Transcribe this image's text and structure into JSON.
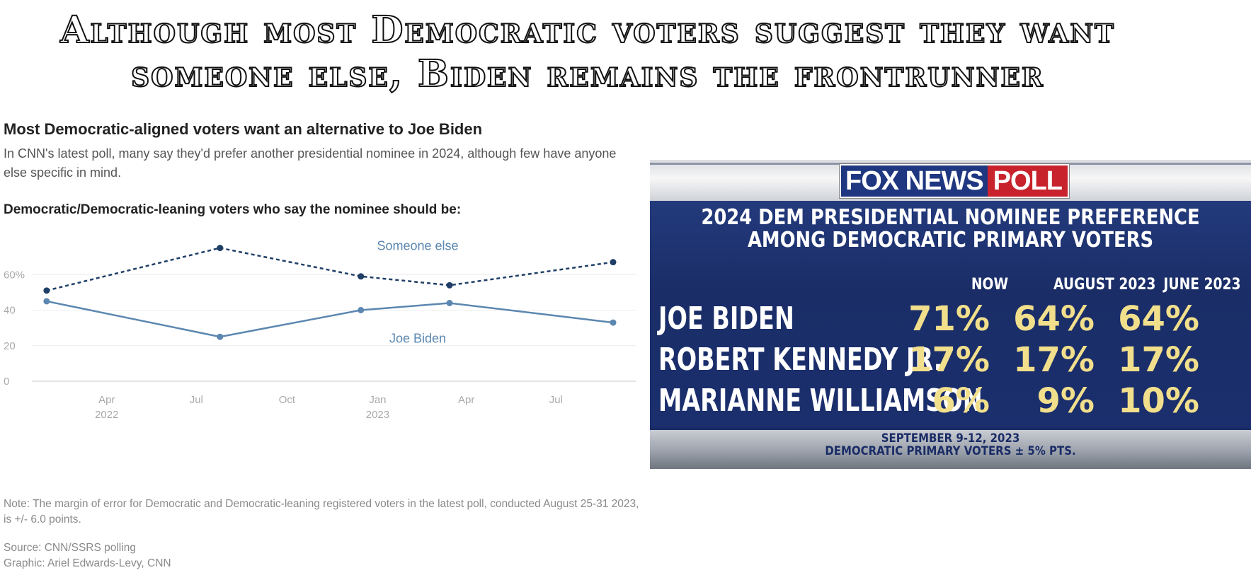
{
  "headline": {
    "line1": "Although most Democratic voters suggest they want",
    "line2": "someone else, Biden remains the frontrunner"
  },
  "cnn": {
    "title": "Most Democratic-aligned voters want an alternative to Joe Biden",
    "subtitle": "In CNN's latest poll, many say they'd prefer another presidential nominee in 2024, although few have anyone else specific in mind.",
    "qualifier": "Democratic/Democratic-leaning voters who say the nominee should be:",
    "note": "Note: The margin of error for Democratic and Democratic-leaning registered voters in the latest poll, conducted August 25-31 2023, is +/- 6.0 points.",
    "source": "Source: CNN/SSRS polling",
    "graphic": "Graphic: Ariel Edwards-Levy, CNN"
  },
  "chart_data": {
    "type": "line",
    "title": "Most Democratic-aligned voters want an alternative to Joe Biden",
    "subtitle": "Democratic/Democratic-leaning voters who say the nominee should be:",
    "x_ticks": [
      {
        "date": "2022-04-01",
        "label": "Apr",
        "year": "2022"
      },
      {
        "date": "2022-07-01",
        "label": "Jul",
        "year": ""
      },
      {
        "date": "2022-10-01",
        "label": "Oct",
        "year": ""
      },
      {
        "date": "2023-01-01",
        "label": "Jan",
        "year": "2023"
      },
      {
        "date": "2023-04-01",
        "label": "Apr",
        "year": ""
      },
      {
        "date": "2023-07-01",
        "label": "Jul",
        "year": ""
      }
    ],
    "xlim": [
      "2022-01-15",
      "2023-09-20"
    ],
    "y_ticks": [
      {
        "value": 0,
        "label": "0"
      },
      {
        "value": 20,
        "label": "20"
      },
      {
        "value": 40,
        "label": "40"
      },
      {
        "value": 60,
        "label": "60%"
      }
    ],
    "ylim": [
      0,
      80
    ],
    "grid": true,
    "series": [
      {
        "name": "Someone else",
        "color": "#1f3f66",
        "dashed": true,
        "label_position": "above",
        "points": [
          {
            "x": "2022-01-30",
            "y": 51
          },
          {
            "x": "2022-07-25",
            "y": 75
          },
          {
            "x": "2022-12-15",
            "y": 59
          },
          {
            "x": "2023-03-15",
            "y": 54
          },
          {
            "x": "2023-08-28",
            "y": 67
          }
        ]
      },
      {
        "name": "Joe Biden",
        "color": "#5b87b0",
        "dashed": false,
        "label_position": "below",
        "points": [
          {
            "x": "2022-01-30",
            "y": 45
          },
          {
            "x": "2022-07-25",
            "y": 25
          },
          {
            "x": "2022-12-15",
            "y": 40
          },
          {
            "x": "2023-03-15",
            "y": 44
          },
          {
            "x": "2023-08-28",
            "y": 33
          }
        ]
      }
    ]
  },
  "fox": {
    "logo_left": "FOX NEWS",
    "logo_right": "POLL",
    "heading_line1": "2024 DEM PRESIDENTIAL NOMINEE PREFERENCE",
    "heading_line2": "AMONG DEMOCRATIC PRIMARY VOTERS",
    "columns": [
      "NOW",
      "AUGUST 2023",
      "JUNE 2023"
    ],
    "rows": [
      {
        "name": "JOE BIDEN",
        "values": [
          "71%",
          "64%",
          "64%"
        ]
      },
      {
        "name": "ROBERT KENNEDY JR.",
        "values": [
          "17%",
          "17%",
          "17%"
        ]
      },
      {
        "name": "MARIANNE WILLIAMSON",
        "values": [
          "6%",
          "9%",
          "10%"
        ]
      }
    ],
    "footer_date": "SEPTEMBER 9-12, 2023",
    "footer_moe": "DEMOCRATIC PRIMARY VOTERS ± 5% PTS.",
    "colors": {
      "navy": "#1a2c66",
      "gold": "#f1df8c",
      "red": "#c8232c"
    }
  }
}
